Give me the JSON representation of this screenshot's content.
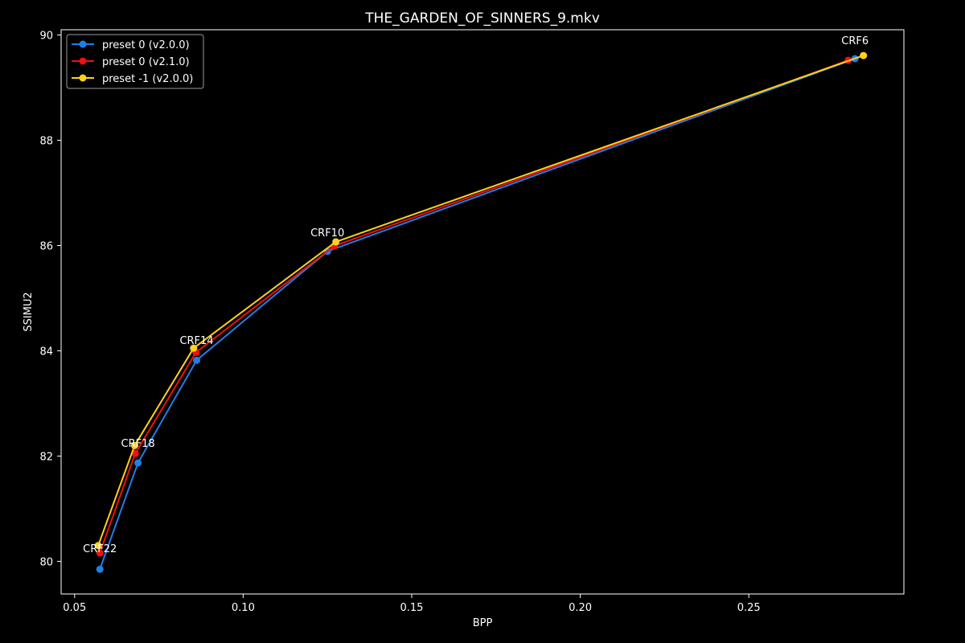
{
  "chart_data": {
    "type": "line",
    "title": "THE_GARDEN_OF_SINNERS_9.mkv",
    "xlabel": "BPP",
    "ylabel": "SSIMU2",
    "xlim": [
      0.046,
      0.296
    ],
    "ylim": [
      79.38,
      90.1
    ],
    "xticks": [
      0.05,
      0.1,
      0.15,
      0.2,
      0.25
    ],
    "xtick_labels": [
      "0.05",
      "0.10",
      "0.15",
      "0.20",
      "0.25"
    ],
    "yticks": [
      80,
      82,
      84,
      86,
      88,
      90
    ],
    "ytick_labels": [
      "80",
      "82",
      "84",
      "86",
      "88",
      "90"
    ],
    "legend_position": "top-left",
    "grid": false,
    "background": "#000000",
    "series": [
      {
        "name": "preset 0 (v2.0.0)",
        "color": "#1f7fe6",
        "x": [
          0.0575,
          0.0688,
          0.0862,
          0.125,
          0.2815
        ],
        "y": [
          79.85,
          81.87,
          83.82,
          85.89,
          89.55
        ]
      },
      {
        "name": "preset 0 (v2.1.0)",
        "color": "#ee1111",
        "x": [
          0.0575,
          0.068,
          0.086,
          0.127,
          0.2795
        ],
        "y": [
          80.16,
          82.05,
          83.97,
          85.99,
          89.52
        ]
      },
      {
        "name": "preset -1 (v2.0.0)",
        "color": "#ffd21a",
        "x": [
          0.057,
          0.0678,
          0.0853,
          0.1275,
          0.284
        ],
        "y": [
          80.3,
          82.2,
          84.05,
          86.07,
          89.61
        ]
      }
    ],
    "annotations": [
      {
        "text": "CRF22",
        "x": 0.0575,
        "y": 80.1
      },
      {
        "text": "CRF18",
        "x": 0.0688,
        "y": 82.1
      },
      {
        "text": "CRF14",
        "x": 0.0862,
        "y": 84.05
      },
      {
        "text": "CRF10",
        "x": 0.125,
        "y": 86.1
      },
      {
        "text": "CRF6",
        "x": 0.2815,
        "y": 89.75
      }
    ]
  }
}
